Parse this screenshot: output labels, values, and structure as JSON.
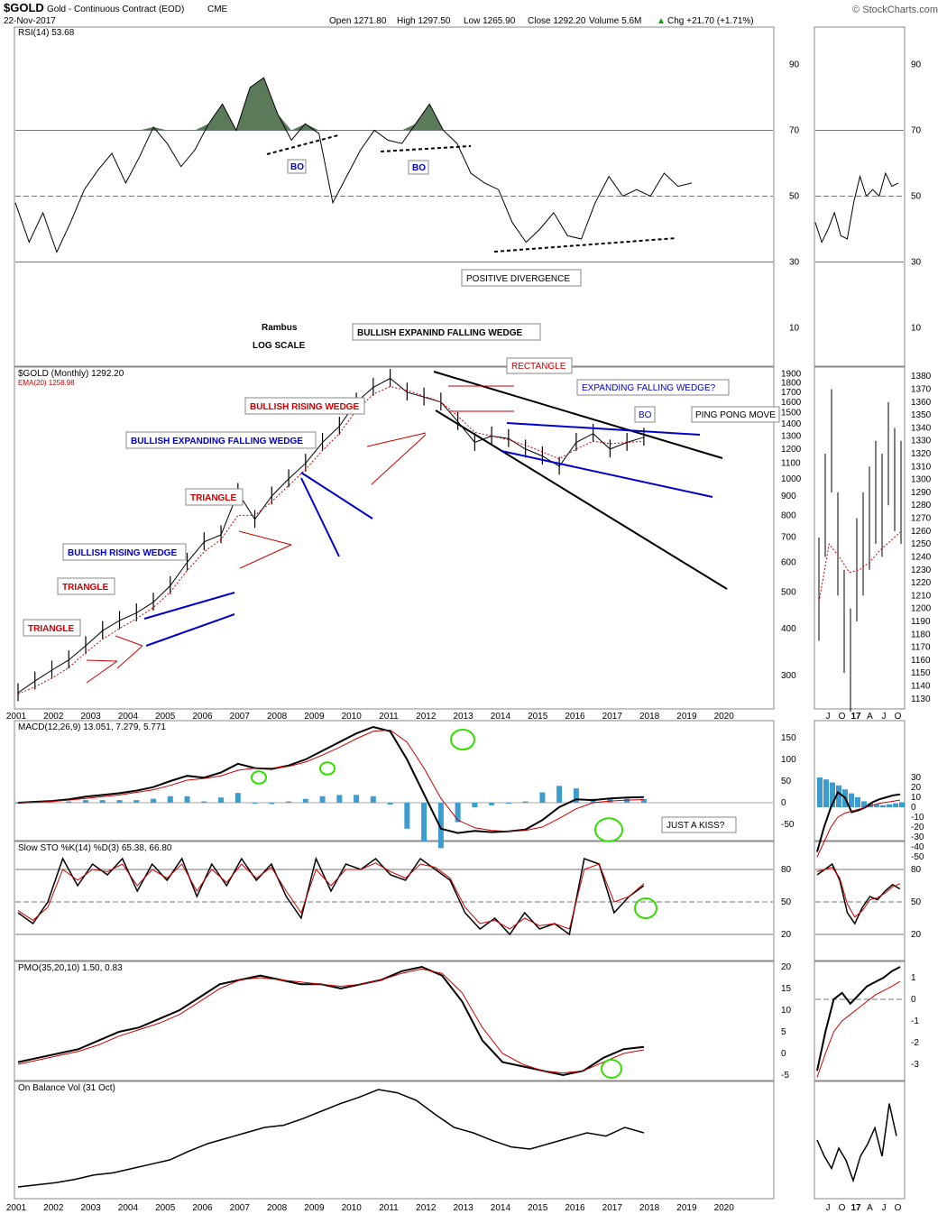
{
  "header": {
    "symbol": "$GOLD",
    "name": "Gold - Continuous Contract (EOD)",
    "exchange": "CME",
    "date": "22-Nov-2017",
    "open": "Open 1271.80",
    "high": "High 1297.50",
    "low": "Low 1265.90",
    "close": "Close 1292.20",
    "volume": "Volume 5.6M",
    "change": "Chg +21.70 (+1.71%)",
    "change_arrow": "▲",
    "watermark": "© StockCharts.com"
  },
  "colors": {
    "price_red": "#cc0000",
    "label_red": "#cc0000",
    "label_blue": "#0000cc",
    "macd_bar": "#3c9cd0",
    "rsi_fill": "#5a7a5a",
    "green_circle": "#33dd00"
  },
  "chart_data": [
    {
      "type": "line",
      "title": "RSI(14) 53.68",
      "series": [
        {
          "name": "RSI(14)",
          "values": [
            48,
            36,
            45,
            33,
            42,
            52,
            58,
            63,
            54,
            62,
            71,
            66,
            59,
            64,
            72,
            78,
            70,
            83,
            86,
            75,
            67,
            72,
            69,
            48,
            56,
            64,
            70,
            67,
            66,
            72,
            78,
            70,
            66,
            57,
            54,
            52,
            42,
            36,
            40,
            45,
            38,
            37,
            48,
            56,
            50,
            52,
            50,
            57,
            53,
            54
          ]
        }
      ],
      "yticks": [
        10,
        30,
        50,
        70,
        90
      ],
      "annotations": [
        "BO",
        "BO",
        "POSITIVE DIVERGENCE"
      ]
    },
    {
      "type": "line",
      "title": "$GOLD (Monthly) 1292.20",
      "series": [
        {
          "name": "$GOLD (Monthly)",
          "values": [
            270,
            290,
            310,
            330,
            360,
            395,
            420,
            440,
            470,
            520,
            600,
            680,
            710,
            920,
            780,
            900,
            1000,
            1100,
            1250,
            1380,
            1600,
            1750,
            1850,
            1700,
            1650,
            1600,
            1420,
            1250,
            1300,
            1280,
            1200,
            1150,
            1080,
            1250,
            1320,
            1200,
            1250,
            1290
          ]
        },
        {
          "name": "EMA(20) 1258.98",
          "values": [
            268,
            280,
            295,
            315,
            345,
            375,
            400,
            425,
            455,
            500,
            570,
            640,
            690,
            800,
            800,
            870,
            960,
            1060,
            1190,
            1320,
            1520,
            1680,
            1760,
            1720,
            1660,
            1600,
            1470,
            1330,
            1300,
            1270,
            1230,
            1180,
            1130,
            1200,
            1260,
            1240,
            1250,
            1259
          ]
        }
      ],
      "x_start": 2001,
      "x_end": 2020,
      "yticks_left": [
        300,
        400,
        500,
        600,
        700,
        800,
        900,
        1000,
        1100,
        1200,
        1300,
        1400,
        1500,
        1600,
        1700,
        1800,
        1900
      ],
      "yticks_right": [
        1130,
        1140,
        1150,
        1160,
        1170,
        1180,
        1190,
        1200,
        1210,
        1220,
        1230,
        1240,
        1250,
        1260,
        1270,
        1280,
        1290,
        1300,
        1310,
        1320,
        1330,
        1340,
        1350,
        1360,
        1370,
        1380
      ],
      "xticks": [
        "2001",
        "2002",
        "2003",
        "2004",
        "2005",
        "2006",
        "2007",
        "2008",
        "2009",
        "2010",
        "2011",
        "2012",
        "2013",
        "2014",
        "2015",
        "2016",
        "2017",
        "2018",
        "2019",
        "2020"
      ],
      "yscale": "log",
      "annotations": [
        "Rambus",
        "LOG SCALE",
        "BULLISH EXPANIND FALLING WEDGE",
        "RECTANGLE",
        "EXPANDING FALLING WEDGE?",
        "BO",
        "PING PONG MOVE",
        "BULLISH RISING WEDGE",
        "BULLISH EXPANDING FALLING WEDGE",
        "TRIANGLE",
        "BULLISH RISING WEDGE",
        "TRIANGLE",
        "TRIANGLE"
      ]
    },
    {
      "type": "line",
      "title": "MACD(12,26,9) 13.051, 7.279, 5.771",
      "series": [
        {
          "name": "MACD",
          "values": [
            0,
            2,
            4,
            8,
            14,
            18,
            22,
            28,
            36,
            50,
            62,
            58,
            70,
            90,
            80,
            78,
            86,
            100,
            120,
            140,
            160,
            175,
            165,
            100,
            20,
            -60,
            -70,
            -65,
            -68,
            -66,
            -62,
            -40,
            -10,
            8,
            6,
            10,
            12,
            13
          ]
        },
        {
          "name": "Signal",
          "values": [
            0,
            1,
            3,
            6,
            10,
            14,
            18,
            24,
            30,
            40,
            52,
            56,
            62,
            75,
            80,
            80,
            84,
            94,
            110,
            128,
            148,
            165,
            168,
            140,
            80,
            10,
            -40,
            -58,
            -64,
            -66,
            -64,
            -56,
            -36,
            -14,
            0,
            4,
            6,
            7.3
          ]
        }
      ],
      "yticks": [
        -50,
        0,
        50,
        100,
        150
      ],
      "annotations": [
        "JUST A KISS?"
      ]
    },
    {
      "type": "line",
      "title": "Slow STO %K(14) %D(3) 65.38, 66.80",
      "series": [
        {
          "name": "%K",
          "values": [
            40,
            30,
            50,
            90,
            65,
            85,
            75,
            90,
            60,
            85,
            70,
            90,
            55,
            85,
            65,
            90,
            70,
            85,
            55,
            35,
            90,
            60,
            85,
            80,
            90,
            75,
            70,
            90,
            80,
            70,
            40,
            25,
            35,
            20,
            40,
            25,
            30,
            20,
            90,
            85,
            40,
            55,
            65
          ]
        },
        {
          "name": "%D",
          "values": [
            42,
            33,
            45,
            80,
            70,
            80,
            78,
            85,
            65,
            80,
            72,
            85,
            60,
            80,
            68,
            85,
            72,
            82,
            60,
            40,
            80,
            65,
            80,
            80,
            86,
            78,
            72,
            85,
            82,
            72,
            45,
            30,
            33,
            25,
            35,
            28,
            30,
            25,
            80,
            85,
            50,
            55,
            66.8
          ]
        }
      ],
      "yticks": [
        20,
        50,
        80
      ]
    },
    {
      "type": "line",
      "title": "PMO(35,20,10) 1.50, 0.83",
      "series": [
        {
          "name": "PMO",
          "values": [
            -2,
            -1,
            0,
            1,
            3,
            5,
            6,
            8,
            10,
            13,
            16,
            17,
            18,
            17,
            16,
            16,
            15,
            16,
            17,
            19,
            20,
            18,
            12,
            3,
            -2,
            -3,
            -4,
            -5,
            -4,
            -1,
            1,
            1.5
          ]
        },
        {
          "name": "Signal",
          "values": [
            -2.5,
            -1.5,
            -0.5,
            0.5,
            2,
            4,
            5.5,
            7,
            9,
            12,
            15,
            17,
            17.5,
            17,
            16.5,
            16,
            15.5,
            16,
            17,
            18.5,
            19.5,
            18.5,
            14,
            6,
            0,
            -2.5,
            -4,
            -4.5,
            -4,
            -2,
            0,
            0.83
          ]
        }
      ],
      "yticks": [
        -5,
        0,
        5,
        10,
        15,
        20
      ]
    },
    {
      "type": "line",
      "title": "On Balance Vol (31 Oct)",
      "series": [
        {
          "name": "On Balance Vol",
          "values": [
            5,
            7,
            9,
            12,
            16,
            18,
            22,
            26,
            30,
            38,
            45,
            50,
            55,
            60,
            62,
            68,
            75,
            82,
            88,
            95,
            92,
            85,
            72,
            60,
            55,
            48,
            42,
            40,
            45,
            50,
            55,
            52,
            60,
            55
          ]
        }
      ],
      "xticks": [
        "2001",
        "2002",
        "2003",
        "2004",
        "2005",
        "2006",
        "2007",
        "2008",
        "2009",
        "2010",
        "2011",
        "2012",
        "2013",
        "2014",
        "2015",
        "2016",
        "2017",
        "2018",
        "2019",
        "2020"
      ]
    }
  ],
  "side_panels": {
    "x_labels": [
      "J",
      "O",
      "17",
      "A",
      "J",
      "O"
    ],
    "macd_yticks": [
      -50,
      -40,
      -30,
      -20,
      -10,
      0,
      10,
      20,
      30
    ],
    "pmo_yticks": [
      -3,
      -2,
      -1,
      0,
      1
    ],
    "rsi_yticks": [
      30,
      50,
      70,
      90
    ],
    "sto_yticks": [
      20,
      50,
      80
    ]
  }
}
